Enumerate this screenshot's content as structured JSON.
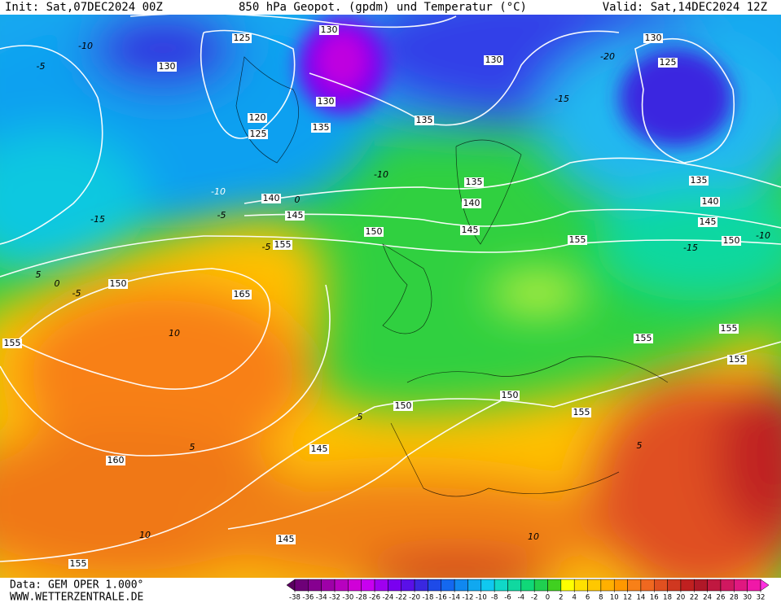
{
  "header": {
    "init": "Init: Sat,07DEC2024 00Z",
    "title": "850 hPa Geopot. (gpdm) und Temperatur (°C)",
    "valid": "Valid: Sat,14DEC2024 12Z"
  },
  "geopotential_labels": [
    "125",
    "130",
    "130",
    "130",
    "130",
    "125",
    "130",
    "120",
    "125",
    "135",
    "135",
    "135",
    "135",
    "140",
    "140",
    "140",
    "145",
    "145",
    "145",
    "150",
    "150",
    "155",
    "155",
    "165",
    "150",
    "155",
    "155",
    "155",
    "155",
    "150",
    "150",
    "155",
    "145",
    "160",
    "145",
    "155"
  ],
  "temperature_labels": [
    "-10",
    "-20",
    "-15",
    "-5",
    "-10",
    "-10",
    "-15",
    "-5",
    "0",
    "-15",
    "-10",
    "0",
    "-5",
    "5",
    "-5",
    "10",
    "5",
    "5",
    "10",
    "10",
    "5"
  ],
  "colorbar": {
    "ticks": [
      -38,
      -36,
      -34,
      -32,
      -30,
      -28,
      -26,
      -24,
      -22,
      -20,
      -18,
      -16,
      -14,
      -12,
      -10,
      -8,
      -6,
      -4,
      -2,
      0,
      2,
      4,
      6,
      8,
      10,
      12,
      14,
      16,
      18,
      20,
      22,
      24,
      26,
      28,
      30,
      32
    ],
    "colors": [
      "#5a0060",
      "#6e0078",
      "#860090",
      "#9e00a8",
      "#b800c0",
      "#d000d8",
      "#c800f0",
      "#a000f0",
      "#7a00f0",
      "#5a10e8",
      "#3a28e0",
      "#1e4ae8",
      "#1468f0",
      "#1088f0",
      "#10a8f0",
      "#10c8f0",
      "#10d8c8",
      "#10d8a0",
      "#10d878",
      "#20d050",
      "#40d020",
      "#ffff00",
      "#ffe000",
      "#ffc800",
      "#ffb000",
      "#ff9800",
      "#f88018",
      "#f06820",
      "#e05020",
      "#d03820",
      "#c02020",
      "#b01828",
      "#c01840",
      "#d01860",
      "#e01880",
      "#f018a8",
      "#ff30e0"
    ]
  },
  "footer": {
    "source": "Data: GEM OPER 1.000°",
    "site": "WWW.WETTERZENTRALE.DE"
  }
}
